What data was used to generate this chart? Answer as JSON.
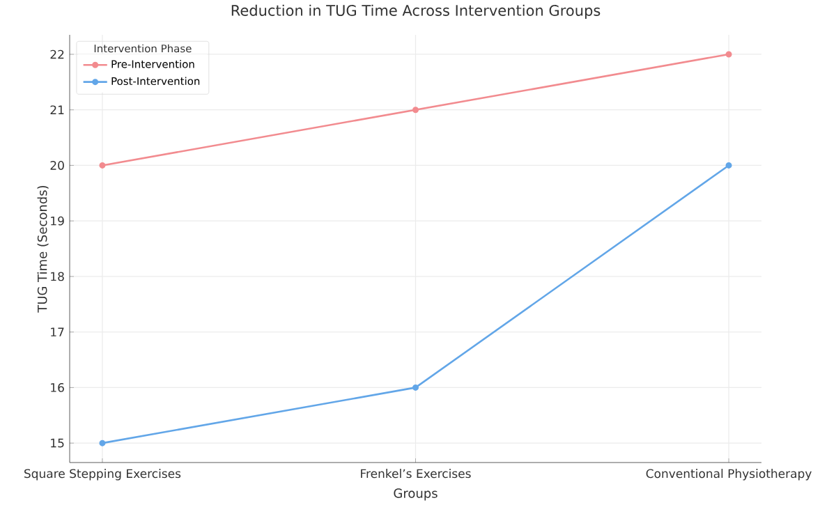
{
  "chart_data": {
    "type": "line",
    "title": "Reduction in TUG Time Across Intervention Groups",
    "xlabel": "Groups",
    "ylabel": "TUG Time (Seconds)",
    "legend_title": "Intervention Phase",
    "categories": [
      "Square Stepping Exercises",
      "Frenkel’s Exercises",
      "Conventional Physiotherapy"
    ],
    "series": [
      {
        "name": "Pre-Intervention",
        "color": "#f28b8f",
        "values": [
          20,
          21,
          22
        ]
      },
      {
        "name": "Post-Intervention",
        "color": "#62a6e8",
        "values": [
          15,
          16,
          20
        ]
      }
    ],
    "ylim": [
      14.65,
      22.35
    ],
    "yticks": [
      15,
      16,
      17,
      18,
      19,
      20,
      21,
      22
    ],
    "grid": true,
    "legend": "top left",
    "marker": "circle",
    "line_style": "solid"
  }
}
